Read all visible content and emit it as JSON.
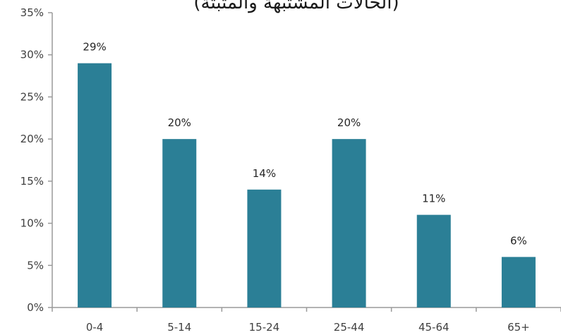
{
  "chart_data": {
    "type": "bar",
    "title": "(الحالات المشتبهة والمثبتة)",
    "categories": [
      "0-4",
      "5-14",
      "15-24",
      "25-44",
      "45-64",
      "65+"
    ],
    "values": [
      29,
      20,
      14,
      20,
      11,
      6
    ],
    "data_labels": [
      "29%",
      "20%",
      "14%",
      "20%",
      "11%",
      "6%"
    ],
    "ylim": [
      0,
      35
    ],
    "y_ticks": [
      0,
      5,
      10,
      15,
      20,
      25,
      30,
      35
    ],
    "y_tick_labels": [
      "0%",
      "5%",
      "10%",
      "15%",
      "20%",
      "25%",
      "30%",
      "35%"
    ],
    "grid": false,
    "bar_color": "#2b7f96"
  }
}
